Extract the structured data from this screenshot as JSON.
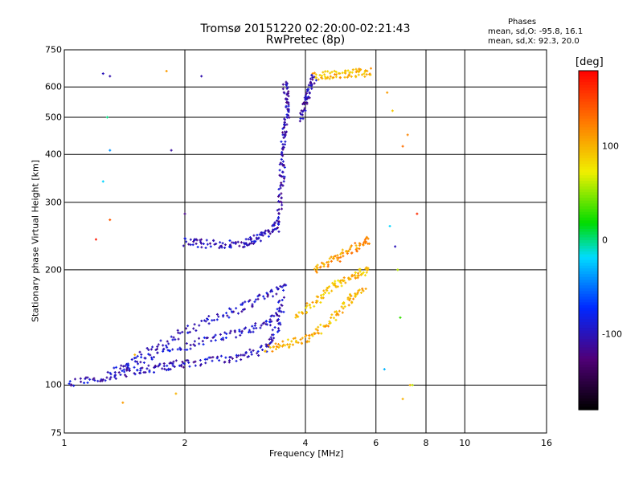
{
  "chart_data": {
    "type": "scatter",
    "title": "Tromsø 20151220 02:20:00-02:21:43",
    "subtitle": "RwPretec (8p)",
    "xlabel": "Frequency [MHz]",
    "ylabel": "Stationary phase Virtual Height [km]",
    "x_scale": "log",
    "y_scale": "log",
    "xlim": [
      1,
      16
    ],
    "ylim": [
      75,
      750
    ],
    "x_ticks": [
      "1",
      "2",
      "4",
      "6",
      "8",
      "10",
      "16"
    ],
    "y_ticks": [
      "75",
      "100",
      "200",
      "300",
      "400",
      "500",
      "600",
      "750"
    ],
    "grid": true,
    "phases_box": {
      "heading": "Phases",
      "line_o": "mean, sd,O: -95.8, 16.1",
      "line_x": "mean, sd,X:  92.3, 20.0"
    },
    "colorbar": {
      "label": "[deg]",
      "range": [
        -180,
        180
      ],
      "ticks": [
        "100",
        "0",
        "-100"
      ]
    },
    "traces": [
      {
        "phase": "O",
        "color_value": -100,
        "x": [
          1.0,
          1.2,
          1.4,
          1.6,
          1.8,
          2.0,
          2.4,
          2.8,
          3.2,
          3.4,
          3.5
        ],
        "y": [
          100,
          104,
          107,
          110,
          112,
          114,
          116,
          119,
          125,
          140,
          170
        ]
      },
      {
        "phase": "O",
        "color_value": -95,
        "x": [
          1.3,
          1.6,
          2.0,
          2.4,
          2.8,
          3.2,
          3.5
        ],
        "y": [
          108,
          118,
          126,
          133,
          138,
          145,
          160
        ]
      },
      {
        "phase": "O",
        "color_value": -100,
        "x": [
          1.4,
          1.7,
          2.0,
          2.4,
          2.8,
          3.2,
          3.6
        ],
        "y": [
          112,
          125,
          138,
          150,
          160,
          172,
          180
        ]
      },
      {
        "phase": "O",
        "color_value": -100,
        "x": [
          2.0,
          2.2,
          2.5,
          2.8,
          3.0,
          3.2,
          3.4
        ],
        "y": [
          236,
          234,
          233,
          235,
          240,
          248,
          262
        ]
      },
      {
        "phase": "O",
        "color_value": -105,
        "x": [
          3.4,
          3.45,
          3.5,
          3.5,
          3.55,
          3.6,
          3.6,
          3.55
        ],
        "y": [
          250,
          300,
          350,
          400,
          450,
          500,
          560,
          620
        ]
      },
      {
        "phase": "O",
        "color_value": -105,
        "x": [
          3.9,
          4.0,
          4.1,
          4.2
        ],
        "y": [
          500,
          550,
          600,
          640
        ]
      },
      {
        "phase": "X",
        "color_value": 100,
        "x": [
          3.2,
          3.6,
          4.0,
          4.4,
          4.8,
          5.2,
          5.6
        ],
        "y": [
          125,
          128,
          132,
          140,
          155,
          168,
          180
        ]
      },
      {
        "phase": "X",
        "color_value": 95,
        "x": [
          3.8,
          4.2,
          4.6,
          5.0,
          5.4,
          5.8
        ],
        "y": [
          150,
          165,
          178,
          188,
          195,
          200
        ]
      },
      {
        "phase": "X",
        "color_value": 110,
        "x": [
          4.2,
          4.6,
          5.0,
          5.4,
          5.8
        ],
        "y": [
          200,
          210,
          220,
          230,
          240
        ]
      },
      {
        "phase": "X",
        "color_value": 100,
        "x": [
          4.2,
          4.6,
          5.0,
          5.4,
          5.8
        ],
        "y": [
          640,
          645,
          650,
          652,
          655
        ]
      }
    ],
    "scattered_points": {
      "x": [
        1.25,
        1.3,
        1.28,
        1.3,
        1.25,
        1.8,
        1.85,
        2.2,
        2.0,
        1.3,
        1.2,
        6.4,
        6.6,
        6.5,
        7.2,
        7.0,
        7.6,
        6.7,
        6.8,
        6.9,
        7.3,
        1.5,
        1.4,
        1.9,
        6.3,
        7.4,
        7.0
      ],
      "y": [
        650,
        640,
        500,
        410,
        340,
        660,
        410,
        640,
        280,
        270,
        240,
        580,
        520,
        260,
        450,
        420,
        280,
        230,
        200,
        150,
        100,
        120,
        90,
        95,
        110,
        100,
        92
      ],
      "color_values": [
        -100,
        -105,
        0,
        -40,
        -20,
        110,
        -110,
        -105,
        -120,
        140,
        170,
        110,
        90,
        -20,
        120,
        130,
        160,
        -100,
        60,
        30,
        100,
        100,
        110,
        100,
        -30,
        60,
        100
      ]
    }
  }
}
